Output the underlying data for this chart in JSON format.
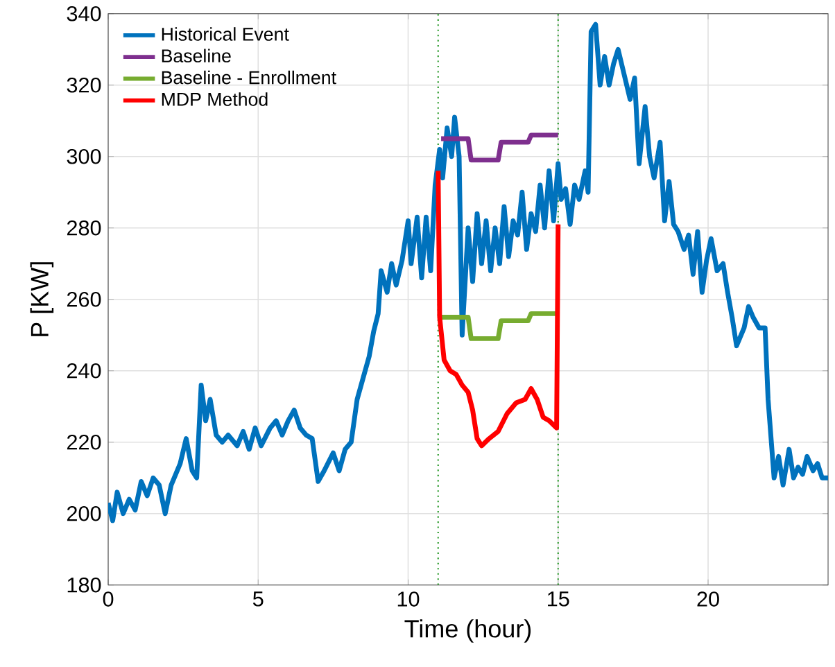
{
  "chart_data": {
    "type": "line",
    "xlabel": "Time (hour)",
    "ylabel": "P [KW]",
    "xlim": [
      0,
      24
    ],
    "ylim": [
      180,
      340
    ],
    "xticks": [
      0,
      5,
      10,
      15,
      20
    ],
    "yticks": [
      180,
      200,
      220,
      240,
      260,
      280,
      300,
      320,
      340
    ],
    "grid": true,
    "legend": "top left",
    "marker": "none",
    "line_style": "solid",
    "ref_lines": [
      {
        "axis": "x",
        "value": 11,
        "color": "#2a9a2a",
        "line_style": "dotted"
      },
      {
        "axis": "x",
        "value": 15,
        "color": "#2a9a2a",
        "line_style": "dotted"
      }
    ],
    "series": [
      {
        "name": "Historical Event",
        "color": "#0072bd",
        "x": [
          0.0,
          0.15,
          0.3,
          0.5,
          0.7,
          0.9,
          1.1,
          1.3,
          1.5,
          1.7,
          1.9,
          2.1,
          2.4,
          2.6,
          2.8,
          2.95,
          3.1,
          3.25,
          3.4,
          3.6,
          3.8,
          4.0,
          4.3,
          4.5,
          4.7,
          4.9,
          5.1,
          5.4,
          5.6,
          5.8,
          6.0,
          6.2,
          6.4,
          6.6,
          6.8,
          7.0,
          7.2,
          7.5,
          7.7,
          7.9,
          8.1,
          8.3,
          8.5,
          8.7,
          8.85,
          9.0,
          9.1,
          9.3,
          9.45,
          9.6,
          9.8,
          10.0,
          10.1,
          10.3,
          10.45,
          10.6,
          10.75,
          10.9,
          11.05,
          11.15,
          11.3,
          11.45,
          11.55,
          11.7,
          11.8,
          12.0,
          12.15,
          12.3,
          12.45,
          12.6,
          12.75,
          12.9,
          13.05,
          13.2,
          13.35,
          13.5,
          13.65,
          13.8,
          13.95,
          14.1,
          14.25,
          14.4,
          14.55,
          14.7,
          14.85,
          15.0,
          15.1,
          15.25,
          15.4,
          15.55,
          15.7,
          15.9,
          16.0,
          16.1,
          16.25,
          16.4,
          16.55,
          16.7,
          16.85,
          17.0,
          17.2,
          17.4,
          17.55,
          17.7,
          17.9,
          18.05,
          18.2,
          18.4,
          18.55,
          18.7,
          18.85,
          19.0,
          19.2,
          19.35,
          19.5,
          19.65,
          19.8,
          19.95,
          20.1,
          20.3,
          20.5,
          20.65,
          20.8,
          20.95,
          21.2,
          21.35,
          21.5,
          21.7,
          21.9,
          22.0,
          22.2,
          22.35,
          22.5,
          22.7,
          22.85,
          23.0,
          23.15,
          23.3,
          23.5,
          23.65,
          23.8,
          24.0
        ],
        "values": [
          203,
          198,
          206,
          200,
          204,
          201,
          209,
          205,
          210,
          208,
          200,
          208,
          214,
          221,
          212,
          210,
          236,
          226,
          232,
          222,
          220,
          222,
          219,
          223,
          218,
          224,
          219,
          224,
          226,
          222,
          226,
          229,
          224,
          222,
          221,
          209,
          212,
          217,
          212,
          218,
          220,
          232,
          238,
          244,
          251,
          256,
          268,
          262,
          270,
          264,
          271,
          282,
          270,
          283,
          266,
          283,
          268,
          292,
          302,
          294,
          308,
          300,
          311,
          300,
          250,
          280,
          265,
          284,
          270,
          282,
          268,
          280,
          270,
          286,
          272,
          282,
          278,
          290,
          274,
          284,
          279,
          292,
          280,
          296,
          282,
          298,
          288,
          291,
          281,
          292,
          288,
          296,
          290,
          335,
          337,
          320,
          328,
          320,
          326,
          330,
          323,
          316,
          322,
          298,
          314,
          300,
          294,
          304,
          282,
          293,
          281,
          279,
          274,
          278,
          267,
          279,
          262,
          271,
          277,
          268,
          270,
          262,
          255,
          247,
          252,
          258,
          255,
          252,
          252,
          232,
          210,
          216,
          208,
          218,
          210,
          213,
          211,
          216,
          212,
          214,
          210,
          210
        ]
      },
      {
        "name": "Baseline",
        "color": "#7e2f8e",
        "x": [
          11.1,
          12.0,
          12.1,
          13.0,
          13.1,
          14.0,
          14.1,
          15.0
        ],
        "values": [
          305,
          305,
          299,
          299,
          304,
          304,
          306,
          306
        ]
      },
      {
        "name": "Baseline - Enrollment",
        "color": "#77ac30",
        "x": [
          11.1,
          12.0,
          12.1,
          13.0,
          13.1,
          14.0,
          14.1,
          15.0
        ],
        "values": [
          255,
          255,
          249,
          249,
          254,
          254,
          256,
          256
        ]
      },
      {
        "name": "MDP Method",
        "color": "#ff0000",
        "x": [
          11.0,
          11.05,
          11.2,
          11.4,
          11.6,
          11.8,
          12.0,
          12.15,
          12.3,
          12.45,
          12.7,
          13.0,
          13.3,
          13.6,
          13.9,
          14.1,
          14.3,
          14.5,
          14.7,
          14.95,
          15.0
        ],
        "values": [
          296,
          255,
          243,
          240,
          239,
          236,
          234,
          229,
          221,
          219,
          221,
          223,
          228,
          231,
          232,
          235,
          232,
          227,
          226,
          224,
          281
        ]
      }
    ]
  }
}
